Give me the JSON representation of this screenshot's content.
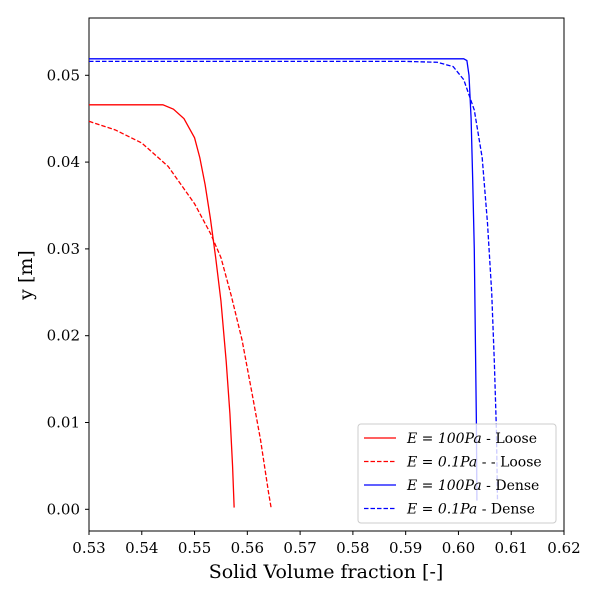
{
  "chart_data": {
    "type": "line",
    "xlabel": "Solid Volume fraction [-]",
    "ylabel": "y [m]",
    "xlim": [
      0.53,
      0.62
    ],
    "ylim": [
      -0.0025,
      0.0566
    ],
    "xticks": [
      "0.53",
      "0.54",
      "0.55",
      "0.56",
      "0.57",
      "0.58",
      "0.59",
      "0.60",
      "0.61",
      "0.62"
    ],
    "yticks": [
      "0.00",
      "0.01",
      "0.02",
      "0.03",
      "0.04",
      "0.05"
    ],
    "grid": false,
    "legend_position": "lower-right",
    "series": [
      {
        "name": "E = 100Pa - Loose",
        "legend": {
          "math": "E = 100Pa",
          "suffix": " - Loose"
        },
        "color": "#ff0000",
        "style": "solid",
        "points": [
          [
            0.53,
            0.0466
          ],
          [
            0.54,
            0.0466
          ],
          [
            0.544,
            0.0466
          ],
          [
            0.546,
            0.0461
          ],
          [
            0.548,
            0.045
          ],
          [
            0.55,
            0.0428
          ],
          [
            0.551,
            0.0405
          ],
          [
            0.552,
            0.0374
          ],
          [
            0.553,
            0.0335
          ],
          [
            0.554,
            0.029
          ],
          [
            0.555,
            0.024
          ],
          [
            0.556,
            0.017
          ],
          [
            0.5567,
            0.011
          ],
          [
            0.5572,
            0.005
          ],
          [
            0.5575,
            0.0002
          ]
        ]
      },
      {
        "name": "E = 0.1Pa - - Loose",
        "legend": {
          "math": "E = 0.1Pa",
          "suffix": " - - Loose"
        },
        "color": "#ff0000",
        "style": "dashed",
        "points": [
          [
            0.53,
            0.0447
          ],
          [
            0.535,
            0.0437
          ],
          [
            0.54,
            0.0422
          ],
          [
            0.545,
            0.0395
          ],
          [
            0.55,
            0.0352
          ],
          [
            0.553,
            0.0318
          ],
          [
            0.555,
            0.029
          ],
          [
            0.557,
            0.0245
          ],
          [
            0.559,
            0.0195
          ],
          [
            0.561,
            0.013
          ],
          [
            0.5625,
            0.008
          ],
          [
            0.564,
            0.002
          ],
          [
            0.5645,
            0.0002
          ]
        ]
      },
      {
        "name": "E = 100Pa - Dense",
        "legend": {
          "math": "E = 100Pa",
          "suffix": " - Dense"
        },
        "color": "#0000ff",
        "style": "solid",
        "points": [
          [
            0.53,
            0.0519
          ],
          [
            0.59,
            0.0519
          ],
          [
            0.601,
            0.0519
          ],
          [
            0.6016,
            0.0517
          ],
          [
            0.602,
            0.05
          ],
          [
            0.6024,
            0.045
          ],
          [
            0.6027,
            0.038
          ],
          [
            0.603,
            0.03
          ],
          [
            0.6032,
            0.02
          ],
          [
            0.6034,
            0.01
          ],
          [
            0.6035,
            0.001
          ]
        ]
      },
      {
        "name": "E = 0.1Pa - Dense",
        "legend": {
          "math": "E = 0.1Pa",
          "suffix": " - Dense"
        },
        "color": "#0000ff",
        "style": "dashed",
        "points": [
          [
            0.53,
            0.0516
          ],
          [
            0.59,
            0.0516
          ],
          [
            0.596,
            0.0515
          ],
          [
            0.599,
            0.051
          ],
          [
            0.601,
            0.0495
          ],
          [
            0.603,
            0.046
          ],
          [
            0.6045,
            0.0405
          ],
          [
            0.6055,
            0.033
          ],
          [
            0.6063,
            0.025
          ],
          [
            0.6068,
            0.017
          ],
          [
            0.6072,
            0.009
          ],
          [
            0.6074,
            0.001
          ]
        ]
      }
    ]
  }
}
